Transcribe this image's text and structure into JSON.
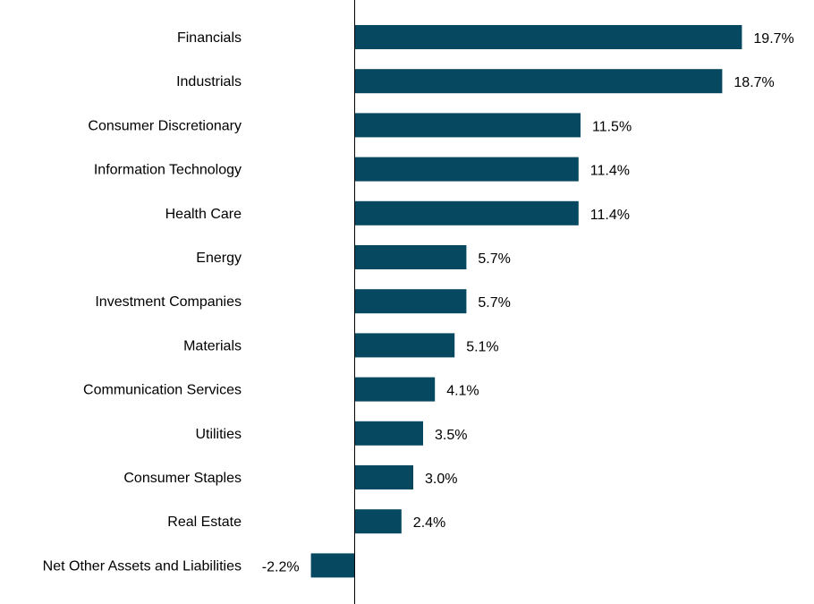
{
  "chart_data": {
    "type": "bar",
    "orientation": "horizontal",
    "categories": [
      "Financials",
      "Industrials",
      "Consumer Discretionary",
      "Information Technology",
      "Health Care",
      "Energy",
      "Investment Companies",
      "Materials",
      "Communication Services",
      "Utilities",
      "Consumer Staples",
      "Real Estate",
      "Net Other Assets and Liabilities"
    ],
    "values": [
      19.7,
      18.7,
      11.5,
      11.4,
      11.4,
      5.7,
      5.7,
      5.1,
      4.1,
      3.5,
      3.0,
      2.4,
      -2.2
    ],
    "value_labels": [
      "19.7%",
      "18.7%",
      "11.5%",
      "11.4%",
      "11.4%",
      "5.7%",
      "5.7%",
      "5.1%",
      "4.1%",
      "3.5%",
      "3.0%",
      "2.4%",
      "-2.2%"
    ],
    "title": "",
    "xlabel": "",
    "ylabel": "",
    "xlim": [
      -2.2,
      19.7
    ],
    "grid": false,
    "legend": "none",
    "bar_color": "#05485f",
    "axis_color": "#000000"
  }
}
